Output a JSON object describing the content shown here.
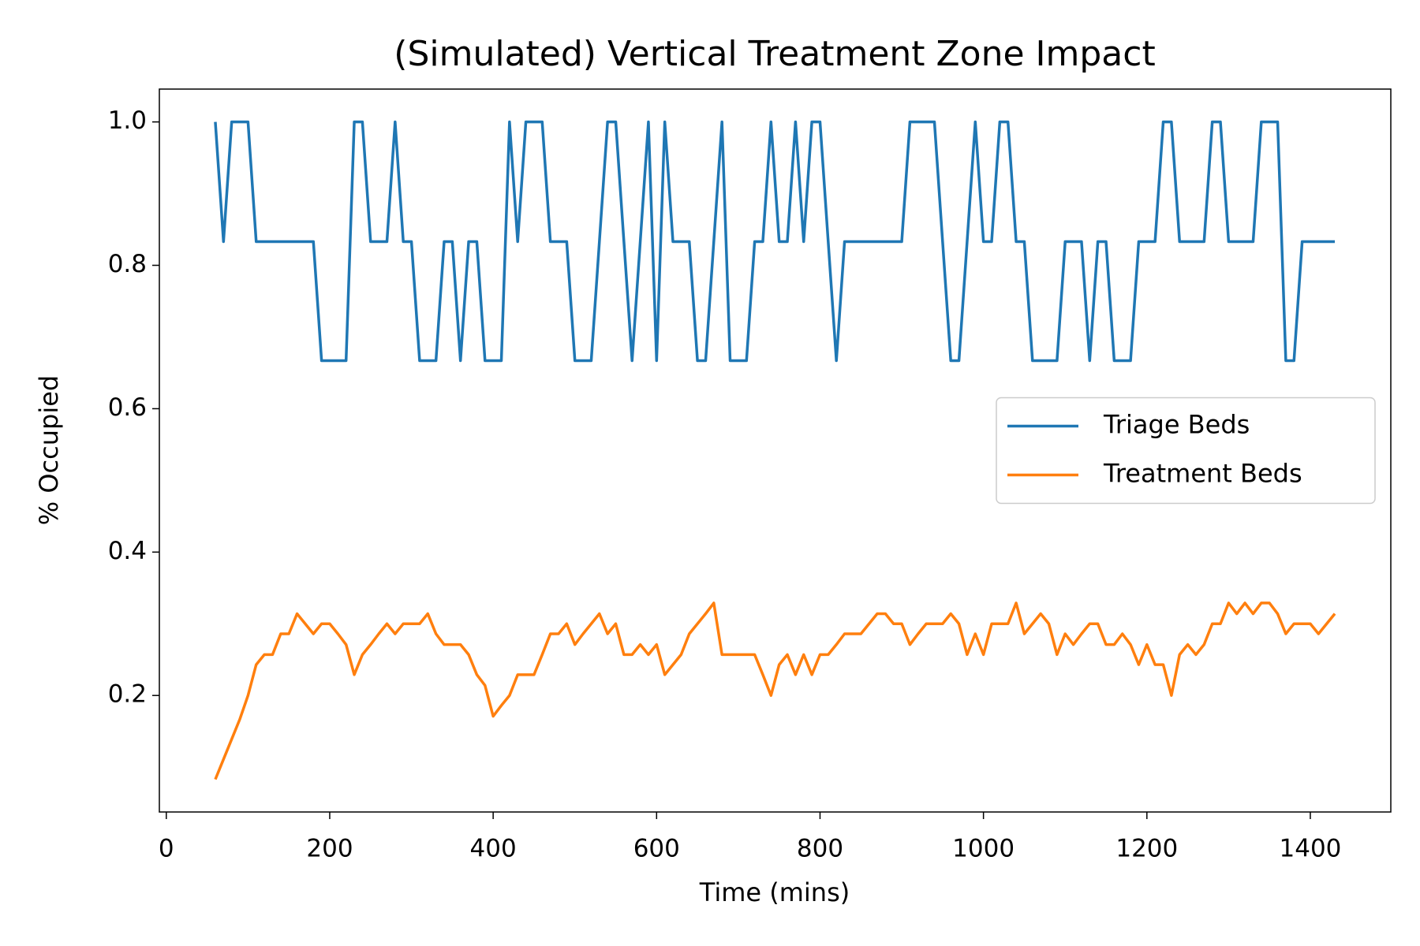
{
  "chart_data": {
    "type": "line",
    "title": "(Simulated) Vertical Treatment Zone Impact",
    "x_label": "Time (mins)",
    "y_label": "% Occupied",
    "x": [
      60,
      70,
      80,
      90,
      100,
      110,
      120,
      130,
      140,
      150,
      160,
      170,
      180,
      190,
      200,
      210,
      220,
      230,
      240,
      250,
      260,
      270,
      280,
      290,
      300,
      310,
      320,
      330,
      340,
      350,
      360,
      370,
      380,
      390,
      400,
      410,
      420,
      430,
      440,
      450,
      460,
      470,
      480,
      490,
      500,
      510,
      520,
      530,
      540,
      550,
      560,
      570,
      580,
      590,
      600,
      610,
      620,
      630,
      640,
      650,
      660,
      670,
      680,
      690,
      700,
      710,
      720,
      730,
      740,
      750,
      760,
      770,
      780,
      790,
      800,
      810,
      820,
      830,
      840,
      850,
      860,
      870,
      880,
      890,
      900,
      910,
      920,
      930,
      940,
      950,
      960,
      970,
      980,
      990,
      1000,
      1010,
      1020,
      1030,
      1040,
      1050,
      1060,
      1070,
      1080,
      1090,
      1100,
      1110,
      1120,
      1130,
      1140,
      1150,
      1160,
      1170,
      1180,
      1190,
      1200,
      1210,
      1220,
      1230,
      1240,
      1250,
      1260,
      1270,
      1280,
      1290,
      1300,
      1310,
      1320,
      1330,
      1340,
      1350,
      1360,
      1370,
      1380,
      1390,
      1400,
      1410,
      1420,
      1430
    ],
    "series": [
      {
        "name": "Triage Beds",
        "color": "#1f77b4",
        "values": [
          1,
          0.833,
          1,
          1,
          1,
          0.833,
          0.833,
          0.833,
          0.833,
          0.833,
          0.833,
          0.833,
          0.833,
          0.667,
          0.667,
          0.667,
          0.667,
          1,
          1,
          0.833,
          0.833,
          0.833,
          1,
          0.833,
          0.833,
          0.667,
          0.667,
          0.667,
          0.833,
          0.833,
          0.667,
          0.833,
          0.833,
          0.667,
          0.667,
          0.667,
          1,
          0.833,
          1,
          1,
          1,
          0.833,
          0.833,
          0.833,
          0.667,
          0.667,
          0.667,
          0.833,
          1,
          1,
          0.833,
          0.667,
          0.833,
          1,
          0.667,
          1,
          0.833,
          0.833,
          0.833,
          0.667,
          0.667,
          0.833,
          1,
          0.667,
          0.667,
          0.667,
          0.833,
          0.833,
          1,
          0.833,
          0.833,
          1,
          0.833,
          1,
          1,
          0.833,
          0.667,
          0.833,
          0.833,
          0.833,
          0.833,
          0.833,
          0.833,
          0.833,
          0.833,
          1,
          1,
          1,
          1,
          0.833,
          0.667,
          0.667,
          0.833,
          1,
          0.833,
          0.833,
          1,
          1,
          0.833,
          0.833,
          0.667,
          0.667,
          0.667,
          0.667,
          0.833,
          0.833,
          0.833,
          0.667,
          0.833,
          0.833,
          0.667,
          0.667,
          0.667,
          0.833,
          0.833,
          0.833,
          1,
          1,
          0.833,
          0.833,
          0.833,
          0.833,
          1,
          1,
          0.833,
          0.833,
          0.833,
          0.833,
          1,
          1,
          1,
          0.667,
          0.667,
          0.833,
          0.833,
          0.833,
          0.833,
          0.833
        ]
      },
      {
        "name": "Treatment Beds",
        "color": "#ff7f0e",
        "values": [
          0.083,
          0.111,
          0.139,
          0.167,
          0.2,
          0.243,
          0.257,
          0.257,
          0.286,
          0.286,
          0.314,
          0.3,
          0.286,
          0.3,
          0.3,
          0.286,
          0.271,
          0.229,
          0.257,
          0.271,
          0.286,
          0.3,
          0.286,
          0.3,
          0.3,
          0.3,
          0.314,
          0.286,
          0.271,
          0.271,
          0.271,
          0.257,
          0.229,
          0.214,
          0.171,
          0.186,
          0.2,
          0.229,
          0.229,
          0.229,
          0.257,
          0.286,
          0.286,
          0.3,
          0.271,
          0.286,
          0.3,
          0.314,
          0.286,
          0.3,
          0.257,
          0.257,
          0.271,
          0.257,
          0.271,
          0.229,
          0.243,
          0.257,
          0.286,
          0.3,
          0.314,
          0.329,
          0.257,
          0.257,
          0.257,
          0.257,
          0.257,
          0.229,
          0.2,
          0.243,
          0.257,
          0.229,
          0.257,
          0.229,
          0.257,
          0.257,
          0.271,
          0.286,
          0.286,
          0.286,
          0.3,
          0.314,
          0.314,
          0.3,
          0.3,
          0.271,
          0.286,
          0.3,
          0.3,
          0.3,
          0.314,
          0.3,
          0.257,
          0.286,
          0.257,
          0.3,
          0.3,
          0.3,
          0.329,
          0.286,
          0.3,
          0.314,
          0.3,
          0.257,
          0.286,
          0.271,
          0.286,
          0.3,
          0.3,
          0.271,
          0.271,
          0.286,
          0.271,
          0.243,
          0.271,
          0.243,
          0.243,
          0.2,
          0.257,
          0.271,
          0.257,
          0.271,
          0.3,
          0.3,
          0.329,
          0.314,
          0.329,
          0.314,
          0.329,
          0.329,
          0.314,
          0.286,
          0.3,
          0.3,
          0.3,
          0.286,
          0.3,
          0.314
        ]
      }
    ],
    "xlim": [
      -8.5,
      1498.5
    ],
    "ylim": [
      0.0375,
      1.0458
    ],
    "xticks": [
      0,
      200,
      400,
      600,
      800,
      1000,
      1200,
      1400
    ],
    "yticks": [
      0.2,
      0.4,
      0.6,
      0.8,
      {
        "value": 1,
        "label": "1.0"
      }
    ],
    "legend": "center right",
    "grid": false
  }
}
